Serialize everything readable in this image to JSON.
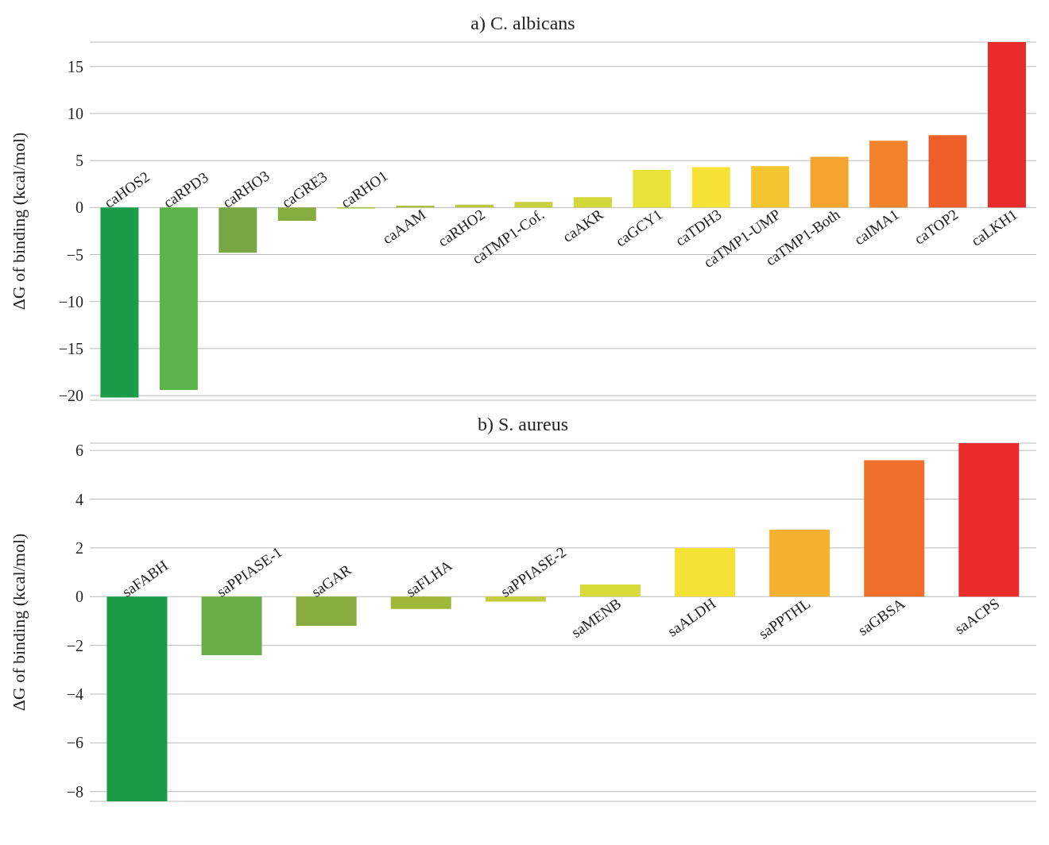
{
  "chart_data": [
    {
      "type": "bar",
      "title": "a) C. albicans",
      "ylabel": "ΔG of binding (kcal/mol)",
      "grid": "y",
      "categories": [
        "caHOS2",
        "caRPD3",
        "caRHO3",
        "caGRE3",
        "caRHO1",
        "caAAM",
        "caRHO2",
        "caTMP1-Cof.",
        "caAKR",
        "caGCY1",
        "caTDH3",
        "caTMP1-UMP",
        "caTMP1-Both",
        "caIMA1",
        "caTOP2",
        "caLKH1"
      ],
      "values": [
        -20.2,
        -19.4,
        -4.8,
        -1.4,
        -0.1,
        0.2,
        0.3,
        0.6,
        1.1,
        4.0,
        4.3,
        4.4,
        5.4,
        7.1,
        7.7,
        17.6
      ],
      "colors": [
        "#1a9c48",
        "#5db34c",
        "#79a744",
        "#86ab3e",
        "#9cb83a",
        "#a9c23a",
        "#b8c93a",
        "#c6d03a",
        "#d3d83a",
        "#e8e23a",
        "#f6e234",
        "#f5c530",
        "#f4a52e",
        "#f2822c",
        "#ee5f2a",
        "#ea2b2b"
      ],
      "ylim": [
        -20.5,
        17.6
      ],
      "yticks": [
        -20,
        -15,
        -10,
        -5,
        0,
        5,
        10,
        15
      ]
    },
    {
      "type": "bar",
      "title": "b) S. aureus",
      "ylabel": "ΔG of binding (kcal/mol)",
      "grid": "y",
      "categories": [
        "saFABH",
        "saPPIASE-1",
        "saGAR",
        "saFLHA",
        "saPPIASE-2",
        "saMENB",
        "saALDH",
        "saPPTHL",
        "saGBSA",
        "saACPS"
      ],
      "values": [
        -8.4,
        -2.4,
        -1.2,
        -0.5,
        -0.2,
        0.5,
        2.0,
        2.75,
        5.6,
        6.3
      ],
      "colors": [
        "#1a9c48",
        "#6aae47",
        "#88ab3f",
        "#a0b83a",
        "#c2cd3a",
        "#d8dc3a",
        "#f6e234",
        "#f4b02f",
        "#f0702b",
        "#ea2b2b"
      ],
      "ylim": [
        -8.4,
        6.3
      ],
      "yticks": [
        -8,
        -6,
        -4,
        -2,
        0,
        2,
        4,
        6
      ]
    }
  ]
}
